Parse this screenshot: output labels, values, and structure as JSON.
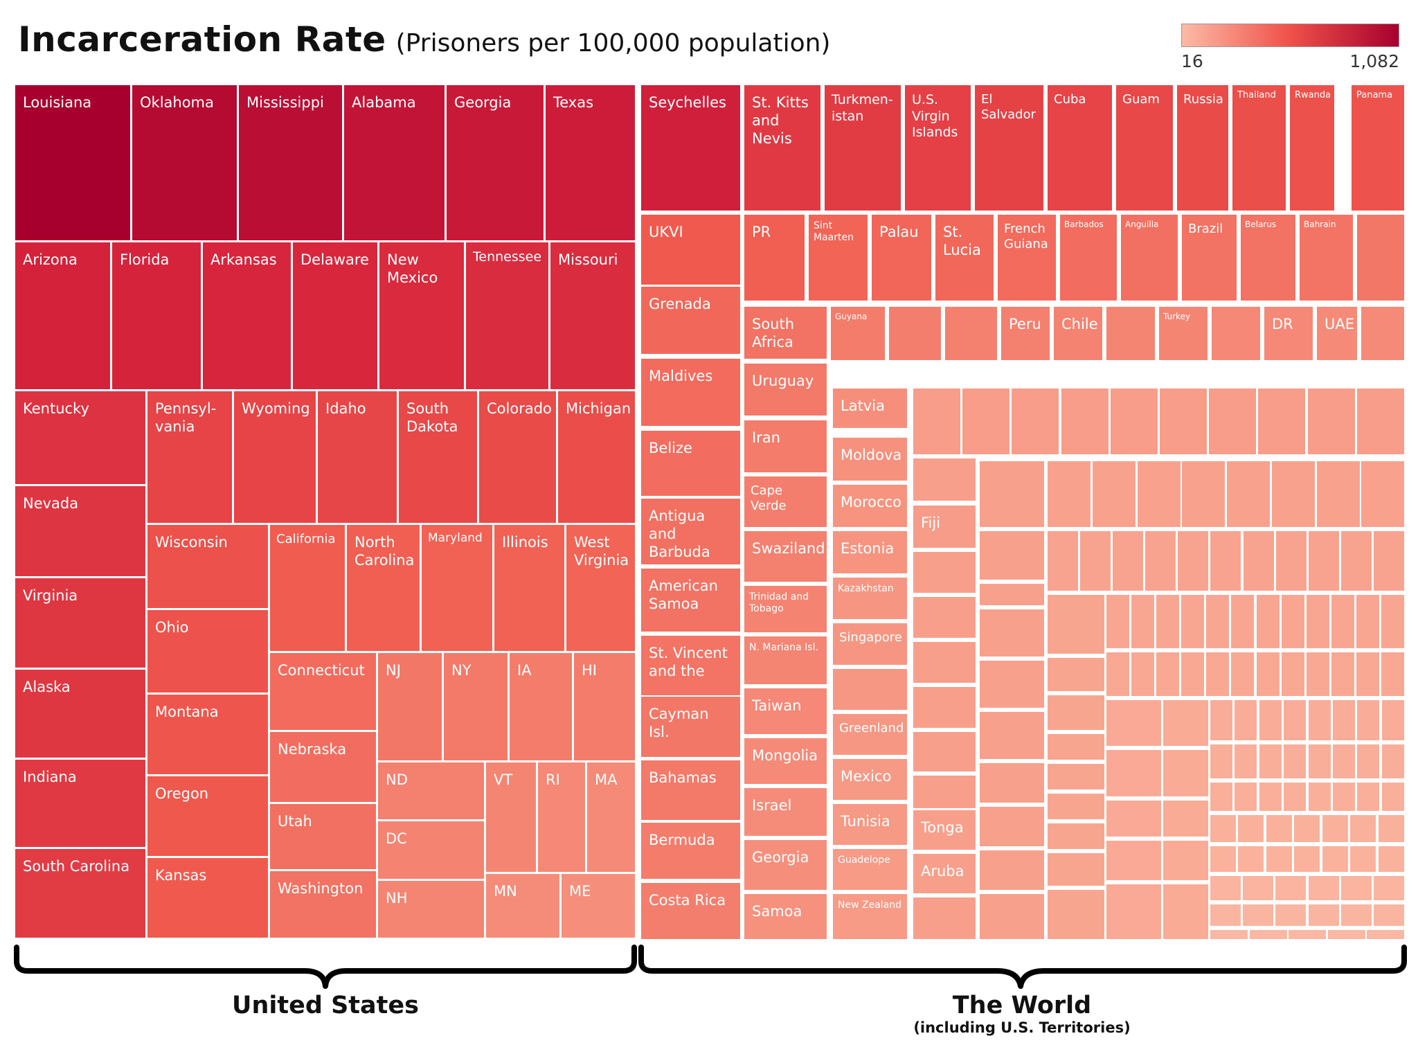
{
  "chart_data": {
    "type": "treemap",
    "title": "Incarceration Rate",
    "subtitle": "(Prisoners per 100,000 population)",
    "color_scale": {
      "min_label": "16",
      "max_label": "1,082",
      "min": 16,
      "max": 1082,
      "color_min": "#fbbba6",
      "color_max": "#a8002e"
    },
    "groups": [
      {
        "name": "United States",
        "note": ""
      },
      {
        "name": "The World",
        "note": "(including U.S. Territories)"
      }
    ],
    "us_order": [
      "Louisiana",
      "Oklahoma",
      "Mississippi",
      "Alabama",
      "Georgia",
      "Texas",
      "Arizona",
      "Florida",
      "Arkansas",
      "Delaware",
      "New Mexico",
      "Tennessee",
      "Missouri",
      "Kentucky",
      "Nevada",
      "Virginia",
      "Alaska",
      "Indiana",
      "South Carolina",
      "Pennsylvania",
      "Wyoming",
      "Idaho",
      "South Dakota",
      "Colorado",
      "Michigan",
      "Wisconsin",
      "Ohio",
      "Montana",
      "Oregon",
      "Kansas",
      "California",
      "North Carolina",
      "Maryland",
      "Illinois",
      "West Virginia",
      "Connecticut",
      "Nebraska",
      "Utah",
      "Washington",
      "NJ",
      "NY",
      "IA",
      "HI",
      "ND",
      "DC",
      "NH",
      "VT",
      "RI",
      "MA",
      "MN",
      "ME"
    ],
    "world_order": [
      "Seychelles",
      "St. Kitts and Nevis",
      "Turkmenistan",
      "U.S. Virgin Islands",
      "El Salvador",
      "Cuba",
      "Guam",
      "Russia",
      "Thailand",
      "Rwanda",
      "Panama",
      "UKVI",
      "PR",
      "Sint Maarten",
      "Palau",
      "St. Lucia",
      "French Guiana",
      "Barbados",
      "Anguilla",
      "Brazil",
      "Belarus",
      "Bahrain",
      "Grenada",
      "Maldives",
      "Belize",
      "Antigua and Barbuda",
      "American Samoa",
      "St. Vincent and the",
      "Cayman Isl.",
      "Bahamas",
      "Bermuda",
      "Costa Rica",
      "South Africa",
      "Guyana",
      "Peru",
      "Chile",
      "Turkey",
      "DR",
      "UAE",
      "Uruguay",
      "Iran",
      "Cape Verde",
      "Swaziland",
      "Trinidad and Tobago",
      "N. Mariana Isl.",
      "Taiwan",
      "Mongolia",
      "Israel",
      "Georgia",
      "Samoa",
      "Latvia",
      "Moldova",
      "Morocco",
      "Estonia",
      "Kazakhstan",
      "Singapore",
      "Greenland",
      "Mexico",
      "Tunisia",
      "Guadelope",
      "New Zealand",
      "Fiji",
      "Tonga",
      "Aruba"
    ],
    "labels": {
      "us": {
        "louisiana": "Louisiana",
        "oklahoma": "Oklahoma",
        "mississippi": "Mississippi",
        "alabama": "Alabama",
        "georgia": "Georgia",
        "texas": "Texas",
        "arizona": "Arizona",
        "florida": "Florida",
        "arkansas": "Arkansas",
        "delaware": "Delaware",
        "new_mexico": "New\nMexico",
        "tennessee": "Tennessee",
        "missouri": "Missouri",
        "kentucky": "Kentucky",
        "nevada": "Nevada",
        "virginia": "Virginia",
        "alaska": "Alaska",
        "indiana": "Indiana",
        "south_carolina": "South Carolina",
        "pennsylvania": "Pennsyl-\nvania",
        "wyoming": "Wyoming",
        "idaho": "Idaho",
        "south_dakota": "South\nDakota",
        "colorado": "Colorado",
        "michigan": "Michigan",
        "wisconsin": "Wisconsin",
        "ohio": "Ohio",
        "montana": "Montana",
        "oregon": "Oregon",
        "kansas": "Kansas",
        "california": "California",
        "north_carolina": "North\nCarolina",
        "maryland": "Maryland",
        "illinois": "Illinois",
        "west_virginia": "West\nVirginia",
        "connecticut": "Connecticut",
        "nebraska": "Nebraska",
        "utah": "Utah",
        "washington": "Washington",
        "nj": "NJ",
        "ny": "NY",
        "ia": "IA",
        "hi": "HI",
        "nd": "ND",
        "dc": "DC",
        "nh": "NH",
        "vt": "VT",
        "ri": "RI",
        "ma": "MA",
        "mn": "MN",
        "me": "ME"
      },
      "world": {
        "seychelles": "Seychelles",
        "st_kitts": "St. Kitts\nand\nNevis",
        "turkmenistan": "Turkmen-\nistan",
        "usvi": "U.S.\nVirgin\nIslands",
        "el_salvador": "El\nSalvador",
        "cuba": "Cuba",
        "guam": "Guam",
        "russia": "Russia",
        "thailand": "Thailand",
        "rwanda": "Rwanda",
        "panama": "Panama",
        "ukvi": "UKVI",
        "pr": "PR",
        "sint_maarten": "Sint\nMaarten",
        "palau": "Palau",
        "st_lucia": "St.\nLucia",
        "french_guiana": "French\nGuiana",
        "barbados": "Barbados",
        "anguilla": "Anguilla",
        "brazil": "Brazil",
        "belarus": "Belarus",
        "bahrain": "Bahrain",
        "grenada": "Grenada",
        "maldives": "Maldives",
        "belize": "Belize",
        "antigua": "Antigua and\nBarbuda",
        "american_samoa": "American\nSamoa",
        "st_vincent": "St. Vincent\nand the",
        "cayman": "Cayman Isl.",
        "bahamas": "Bahamas",
        "bermuda": "Bermuda",
        "costa_rica": "Costa Rica",
        "south_africa": "South\nAfrica",
        "guyana": "Guyana",
        "peru": "Peru",
        "chile": "Chile",
        "turkey": "Turkey",
        "dr": "DR",
        "uae": "UAE",
        "uruguay": "Uruguay",
        "iran": "Iran",
        "cape_verde": "Cape Verde",
        "swaziland": "Swaziland",
        "trinidad": "Trinidad and\nTobago",
        "n_mariana": "N. Mariana Isl.",
        "taiwan": "Taiwan",
        "mongolia": "Mongolia",
        "israel": "Israel",
        "georgia_w": "Georgia",
        "samoa": "Samoa",
        "latvia": "Latvia",
        "moldova": "Moldova",
        "morocco": "Morocco",
        "estonia": "Estonia",
        "kazakhstan": "Kazakhstan",
        "singapore": "Singapore",
        "greenland": "Greenland",
        "mexico": "Mexico",
        "tunisia": "Tunisia",
        "guadelope": "Guadelope",
        "new_zealand": "New Zealand",
        "fiji": "Fiji",
        "tonga": "Tonga",
        "aruba": "Aruba"
      }
    }
  }
}
